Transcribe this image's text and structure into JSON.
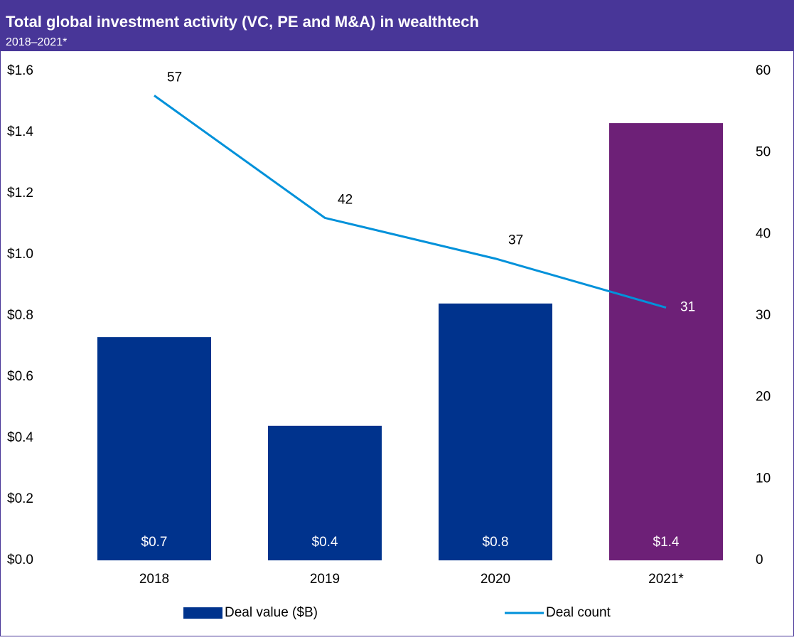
{
  "chart_data": {
    "type": "bar",
    "title": "Total global investment activity (VC, PE and M&A) in wealthtech",
    "subtitle": "2018–2021*",
    "categories": [
      "2018",
      "2019",
      "2020",
      "2021*"
    ],
    "series": [
      {
        "name": "Deal value ($B)",
        "type": "bar",
        "colors": [
          "#00338d",
          "#00338d",
          "#00338d",
          "#6d2077"
        ],
        "values": [
          0.73,
          0.44,
          0.84,
          1.43
        ],
        "value_labels": [
          "$0.7",
          "$0.4",
          "$0.8",
          "$1.4"
        ]
      },
      {
        "name": "Deal count",
        "type": "line",
        "axis": "y2",
        "color": "#0091da",
        "values": [
          57,
          42,
          37,
          31
        ]
      }
    ],
    "ylim": [
      0,
      1.6
    ],
    "yticks": [
      {
        "value": 0,
        "label": "$0.0"
      },
      {
        "value": 0.2,
        "label": "$0.2"
      },
      {
        "value": 0.4,
        "label": "$0.4"
      },
      {
        "value": 0.6,
        "label": "$0.6"
      },
      {
        "value": 0.8,
        "label": "$0.8"
      },
      {
        "value": 1.0,
        "label": "$1.0"
      },
      {
        "value": 1.2,
        "label": "$1.2"
      },
      {
        "value": 1.4,
        "label": "$1.4"
      },
      {
        "value": 1.6,
        "label": "$1.6"
      }
    ],
    "y2lim": [
      0,
      60
    ],
    "y2ticks": [
      0,
      10,
      20,
      30,
      40,
      50,
      60
    ],
    "grid": false,
    "legend": "bottom"
  }
}
